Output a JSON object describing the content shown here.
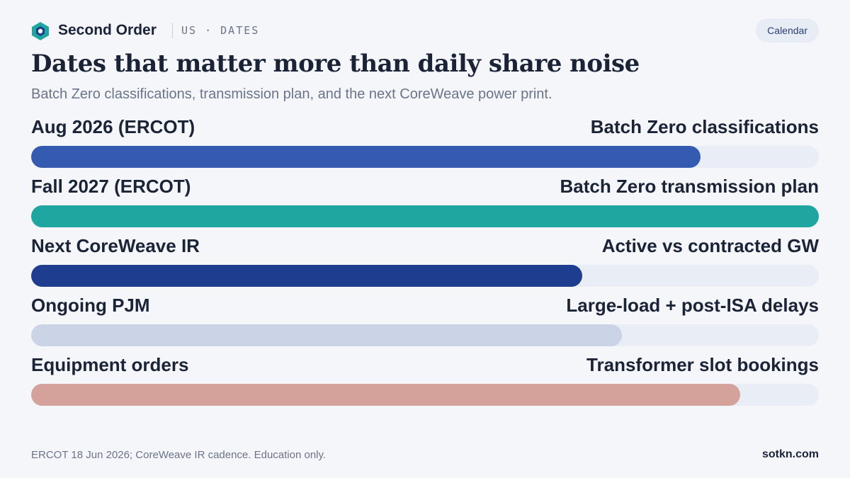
{
  "header": {
    "brand": "Second Order",
    "section": "US · DATES",
    "pill_label": "Calendar",
    "logo_icon": "hexagon-logo-icon"
  },
  "title": "Dates that matter more than daily share noise",
  "subtitle": "Batch Zero classifications, transmission plan, and the next CoreWeave power print.",
  "chart_data": {
    "type": "bar",
    "orientation": "horizontal",
    "xlim": [
      0,
      1
    ],
    "categories": [
      "Aug 2026 (ERCOT)",
      "Fall 2027 (ERCOT)",
      "Next CoreWeave IR",
      "Ongoing PJM",
      "Equipment orders"
    ],
    "descriptions": [
      "Batch Zero classifications",
      "Batch Zero transmission plan",
      "Active vs contracted GW",
      "Large-load + post-ISA delays",
      "Transformer slot bookings"
    ],
    "values": [
      0.85,
      1.0,
      0.7,
      0.75,
      0.9
    ],
    "colors": [
      "#355bb1",
      "#1fa6a0",
      "#1f3d8f",
      "#cbd4e6",
      "#d5a19b"
    ],
    "track_color": "#e9edf6"
  },
  "footer": {
    "note": "ERCOT 18 Jun 2026; CoreWeave IR cadence. Education only.",
    "site": "sotkn.com"
  }
}
